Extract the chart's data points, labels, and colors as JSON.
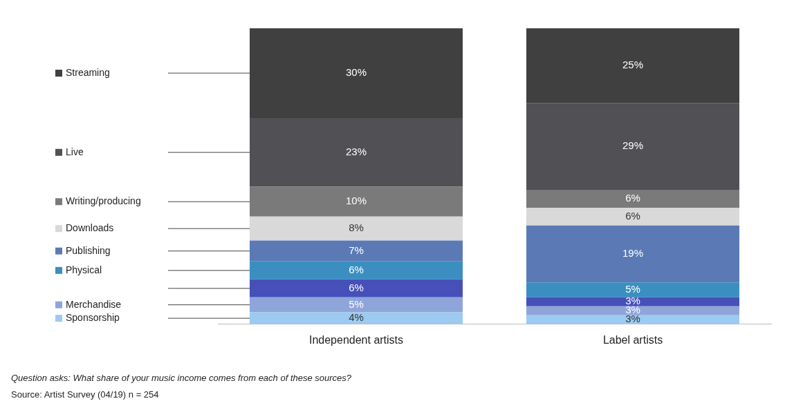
{
  "chart_data": {
    "type": "bar",
    "stacked": true,
    "categories": [
      "Independent artists",
      "Label artists"
    ],
    "ylim": [
      0,
      99
    ],
    "tick_labels": "x",
    "grid": false,
    "legend": "left",
    "series": [
      {
        "name": "Sponsorship",
        "color": "#9ccaf0",
        "values": [
          4,
          3
        ],
        "value_labels": [
          "4%",
          "3%"
        ]
      },
      {
        "name": "Merchandise",
        "color": "#8fa5da",
        "values": [
          5,
          3
        ],
        "value_labels": [
          "5%",
          "3%"
        ]
      },
      {
        "color": "#4650b8",
        "values": [
          6,
          3
        ],
        "value_labels": [
          "6%",
          "3%"
        ]
      },
      {
        "name": "Physical",
        "color": "#3a8fc0",
        "values": [
          6,
          5
        ],
        "value_labels": [
          "6%",
          "5%"
        ]
      },
      {
        "name": "Publishing",
        "color": "#5b7ab5",
        "values": [
          7,
          19
        ],
        "value_labels": [
          "7%",
          "19%"
        ]
      },
      {
        "name": "Downloads",
        "color": "#d9d9d9",
        "values": [
          8,
          6
        ],
        "value_labels": [
          "8%",
          "6%"
        ]
      },
      {
        "name": "Writing/producing",
        "color": "#7a7a7a",
        "values": [
          10,
          6
        ],
        "value_labels": [
          "10%",
          "6%"
        ]
      },
      {
        "name": "Live",
        "color": "#505055",
        "values": [
          23,
          29
        ],
        "value_labels": [
          "23%",
          "29%"
        ]
      },
      {
        "name": "Streaming",
        "color": "#404040",
        "values": [
          30,
          25
        ],
        "value_labels": [
          "30%",
          "25%"
        ]
      }
    ],
    "annotations": [
      "Question asks: What share of your music income comes from each of these sources?",
      "Source: Artist Survey (04/19) n = 254"
    ]
  }
}
